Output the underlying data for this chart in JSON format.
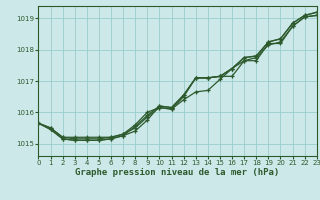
{
  "title": "Graphe pression niveau de la mer (hPa)",
  "bg_color": "#cce8e8",
  "grid_color": "#99cccc",
  "line_color": "#2d5a2d",
  "xlim": [
    0,
    23
  ],
  "ylim": [
    1014.6,
    1019.4
  ],
  "yticks": [
    1015,
    1016,
    1017,
    1018,
    1019
  ],
  "xticks": [
    0,
    1,
    2,
    3,
    4,
    5,
    6,
    7,
    8,
    9,
    10,
    11,
    12,
    13,
    14,
    15,
    16,
    17,
    18,
    19,
    20,
    21,
    22,
    23
  ],
  "series": [
    [
      1015.65,
      1015.5,
      1015.2,
      1015.2,
      1015.2,
      1015.2,
      1015.2,
      1015.3,
      1015.5,
      1015.85,
      1016.15,
      1016.1,
      1016.5,
      1017.1,
      1017.1,
      1017.15,
      1017.15,
      1017.65,
      1017.65,
      1018.2,
      1018.2,
      1018.75,
      1019.05,
      1019.1
    ],
    [
      1015.65,
      1015.5,
      1015.2,
      1015.15,
      1015.15,
      1015.15,
      1015.2,
      1015.3,
      1015.6,
      1016.0,
      1016.15,
      1016.1,
      1016.4,
      1016.65,
      1016.7,
      1017.05,
      1017.4,
      1017.65,
      1017.75,
      1018.15,
      1018.25,
      1018.75,
      1019.05,
      1019.1
    ],
    [
      1015.65,
      1015.45,
      1015.15,
      1015.1,
      1015.1,
      1015.1,
      1015.15,
      1015.25,
      1015.55,
      1015.9,
      1016.2,
      1016.15,
      1016.55,
      1017.1,
      1017.1,
      1017.15,
      1017.4,
      1017.75,
      1017.8,
      1018.25,
      1018.35,
      1018.85,
      1019.1,
      1019.2
    ],
    [
      1015.65,
      1015.45,
      1015.15,
      1015.1,
      1015.1,
      1015.1,
      1015.15,
      1015.25,
      1015.4,
      1015.75,
      1016.2,
      1016.15,
      1016.55,
      1017.1,
      1017.1,
      1017.15,
      1017.4,
      1017.75,
      1017.8,
      1018.25,
      1018.35,
      1018.85,
      1019.1,
      1019.2
    ]
  ],
  "figsize": [
    3.2,
    2.0
  ],
  "dpi": 100
}
